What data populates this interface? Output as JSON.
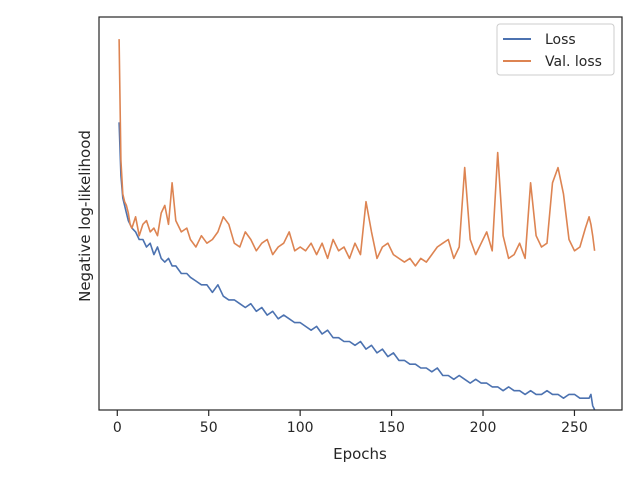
{
  "chart_data": {
    "type": "line",
    "title": "",
    "xlabel": "Epochs",
    "ylabel": "Negative log-likelihood",
    "xlim": [
      -10,
      276
    ],
    "ylim": [
      0,
      1
    ],
    "xticks": [
      0,
      50,
      100,
      150,
      200,
      250
    ],
    "x_tick_labels": [
      "0",
      "50",
      "100",
      "150",
      "200",
      "250"
    ],
    "y_tick_labels_shown": false,
    "grid": false,
    "legend_position": "top-right",
    "series": [
      {
        "name": "Loss",
        "color": "#4c72b0",
        "x": [
          1,
          2,
          3,
          4,
          5,
          6,
          7,
          8,
          10,
          12,
          14,
          16,
          18,
          20,
          22,
          24,
          26,
          28,
          30,
          32,
          35,
          38,
          40,
          43,
          46,
          49,
          52,
          55,
          58,
          61,
          64,
          67,
          70,
          73,
          76,
          79,
          82,
          85,
          88,
          91,
          94,
          97,
          100,
          103,
          106,
          109,
          112,
          115,
          118,
          121,
          124,
          127,
          130,
          133,
          136,
          139,
          142,
          145,
          148,
          151,
          154,
          157,
          160,
          163,
          166,
          169,
          172,
          175,
          178,
          181,
          184,
          187,
          190,
          193,
          196,
          199,
          202,
          205,
          208,
          211,
          214,
          217,
          220,
          223,
          226,
          229,
          232,
          235,
          238,
          241,
          244,
          247,
          250,
          253,
          256,
          258,
          259,
          260,
          261
        ],
        "values": [
          0.74,
          0.6,
          0.54,
          0.52,
          0.5,
          0.48,
          0.47,
          0.46,
          0.45,
          0.43,
          0.43,
          0.41,
          0.42,
          0.39,
          0.41,
          0.38,
          0.37,
          0.38,
          0.36,
          0.36,
          0.34,
          0.34,
          0.33,
          0.32,
          0.31,
          0.31,
          0.29,
          0.31,
          0.28,
          0.27,
          0.27,
          0.26,
          0.25,
          0.26,
          0.24,
          0.25,
          0.23,
          0.24,
          0.22,
          0.23,
          0.22,
          0.21,
          0.21,
          0.2,
          0.19,
          0.2,
          0.18,
          0.19,
          0.17,
          0.17,
          0.16,
          0.16,
          0.15,
          0.16,
          0.14,
          0.15,
          0.13,
          0.14,
          0.12,
          0.13,
          0.11,
          0.11,
          0.1,
          0.1,
          0.09,
          0.09,
          0.08,
          0.09,
          0.07,
          0.07,
          0.06,
          0.07,
          0.06,
          0.05,
          0.06,
          0.05,
          0.05,
          0.04,
          0.04,
          0.03,
          0.04,
          0.03,
          0.03,
          0.02,
          0.03,
          0.02,
          0.02,
          0.03,
          0.02,
          0.02,
          0.01,
          0.02,
          0.02,
          0.01,
          0.01,
          0.01,
          0.02,
          -0.01,
          -0.02
        ]
      },
      {
        "name": "Val. loss",
        "color": "#dd8452",
        "x": [
          1,
          2,
          3,
          4,
          5,
          6,
          7,
          8,
          10,
          12,
          14,
          16,
          18,
          20,
          22,
          24,
          26,
          28,
          30,
          32,
          35,
          38,
          40,
          43,
          46,
          49,
          52,
          55,
          58,
          61,
          64,
          67,
          70,
          73,
          76,
          79,
          82,
          85,
          88,
          91,
          94,
          97,
          100,
          103,
          106,
          109,
          112,
          115,
          118,
          121,
          124,
          127,
          130,
          133,
          136,
          139,
          142,
          145,
          148,
          151,
          154,
          157,
          160,
          163,
          166,
          169,
          172,
          175,
          178,
          181,
          184,
          187,
          190,
          193,
          196,
          199,
          202,
          205,
          208,
          211,
          214,
          217,
          220,
          223,
          226,
          229,
          232,
          235,
          238,
          241,
          244,
          247,
          250,
          253,
          256,
          258,
          259,
          260,
          261
        ],
        "values": [
          0.96,
          0.64,
          0.55,
          0.53,
          0.52,
          0.5,
          0.47,
          0.46,
          0.49,
          0.44,
          0.47,
          0.48,
          0.45,
          0.46,
          0.44,
          0.5,
          0.52,
          0.47,
          0.58,
          0.48,
          0.45,
          0.46,
          0.43,
          0.41,
          0.44,
          0.42,
          0.43,
          0.45,
          0.49,
          0.47,
          0.42,
          0.41,
          0.45,
          0.43,
          0.4,
          0.42,
          0.43,
          0.39,
          0.41,
          0.42,
          0.45,
          0.4,
          0.41,
          0.4,
          0.42,
          0.39,
          0.42,
          0.38,
          0.43,
          0.4,
          0.41,
          0.38,
          0.42,
          0.39,
          0.53,
          0.45,
          0.38,
          0.41,
          0.42,
          0.39,
          0.38,
          0.37,
          0.38,
          0.36,
          0.38,
          0.37,
          0.39,
          0.41,
          0.42,
          0.43,
          0.38,
          0.41,
          0.62,
          0.43,
          0.39,
          0.42,
          0.45,
          0.4,
          0.66,
          0.44,
          0.38,
          0.39,
          0.42,
          0.38,
          0.58,
          0.44,
          0.41,
          0.42,
          0.58,
          0.62,
          0.55,
          0.43,
          0.4,
          0.41,
          0.46,
          0.49,
          0.47,
          0.44,
          0.4
        ]
      }
    ]
  }
}
